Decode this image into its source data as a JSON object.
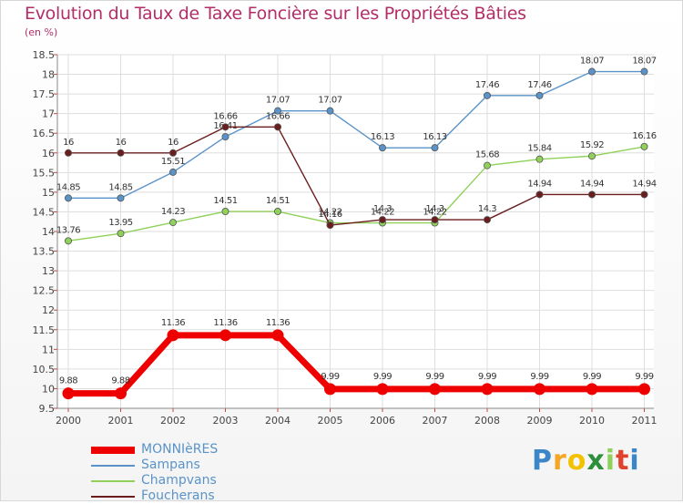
{
  "chart_data": {
    "type": "line",
    "title": "Evolution du Taux de Taxe Foncière sur les Propriétés Bâties",
    "unit_label": "(en %)",
    "ylim": [
      9.5,
      18.5
    ],
    "y_ticks": [
      "9.5",
      "10",
      "10.5",
      "11",
      "11.5",
      "12",
      "12.5",
      "13",
      "13.5",
      "14",
      "14.5",
      "15",
      "15.5",
      "16",
      "16.5",
      "17",
      "17.5",
      "18",
      "18.5"
    ],
    "categories": [
      "2000",
      "2001",
      "2002",
      "2003",
      "2004",
      "2005",
      "2006",
      "2007",
      "2008",
      "2009",
      "2010",
      "2011"
    ],
    "series": [
      {
        "name": "Sampans",
        "color": "#5a93c8",
        "values": [
          14.85,
          14.85,
          15.51,
          16.41,
          17.07,
          17.07,
          16.13,
          16.13,
          17.46,
          17.46,
          18.07,
          18.07
        ],
        "labels": [
          "14.85",
          "14.85",
          "15.51",
          "16.41",
          "17.07",
          "17.07",
          "16.13",
          "16.13",
          "17.46",
          "17.46",
          "18.07",
          "18.07"
        ]
      },
      {
        "name": "Champvans",
        "color": "#8fd15a",
        "values": [
          13.76,
          13.95,
          14.23,
          14.51,
          14.51,
          14.22,
          14.22,
          14.22,
          15.68,
          15.84,
          15.92,
          16.16
        ],
        "labels": [
          "13.76",
          "13.95",
          "14.23",
          "14.51",
          "14.51",
          "14.22",
          "14.22",
          "14.22",
          "15.68",
          "15.84",
          "15.92",
          "16.16"
        ]
      },
      {
        "name": "Foucherans",
        "color": "#6b1d1d",
        "values": [
          16,
          16,
          16,
          16.66,
          16.66,
          14.16,
          14.3,
          14.3,
          14.3,
          14.94,
          14.94,
          14.94
        ],
        "labels": [
          "16",
          "16",
          "16",
          "16.66",
          "16.66",
          "14.16",
          "14.3",
          "14.3",
          "14.3",
          "14.94",
          "14.94",
          "14.94"
        ]
      },
      {
        "name": "MONNIèRES",
        "color": "#ee0000",
        "highlight": true,
        "values": [
          9.88,
          9.88,
          11.36,
          11.36,
          11.36,
          9.99,
          9.99,
          9.99,
          9.99,
          9.99,
          9.99,
          9.99
        ],
        "labels": [
          "9.88",
          "9.88",
          "11.36",
          "11.36",
          "11.36",
          "9.99",
          "9.99",
          "9.99",
          "9.99",
          "9.99",
          "9.99",
          "9.99"
        ]
      }
    ]
  },
  "legend": [
    {
      "name": "MONNIèRES",
      "color": "#ee0000",
      "thick": true
    },
    {
      "name": "Sampans",
      "color": "#5a93c8",
      "thick": false
    },
    {
      "name": "Champvans",
      "color": "#8fd15a",
      "thick": false
    },
    {
      "name": "Foucherans",
      "color": "#6b1d1d",
      "thick": false
    }
  ],
  "brand": {
    "letters": [
      "P",
      "r",
      "o",
      "x",
      "i",
      "t",
      "i"
    ],
    "colors": [
      "#3b86c6",
      "#f5a623",
      "#f2c200",
      "#2c8f3a",
      "#8fd15a",
      "#e0432b",
      "#3b86c6"
    ]
  }
}
